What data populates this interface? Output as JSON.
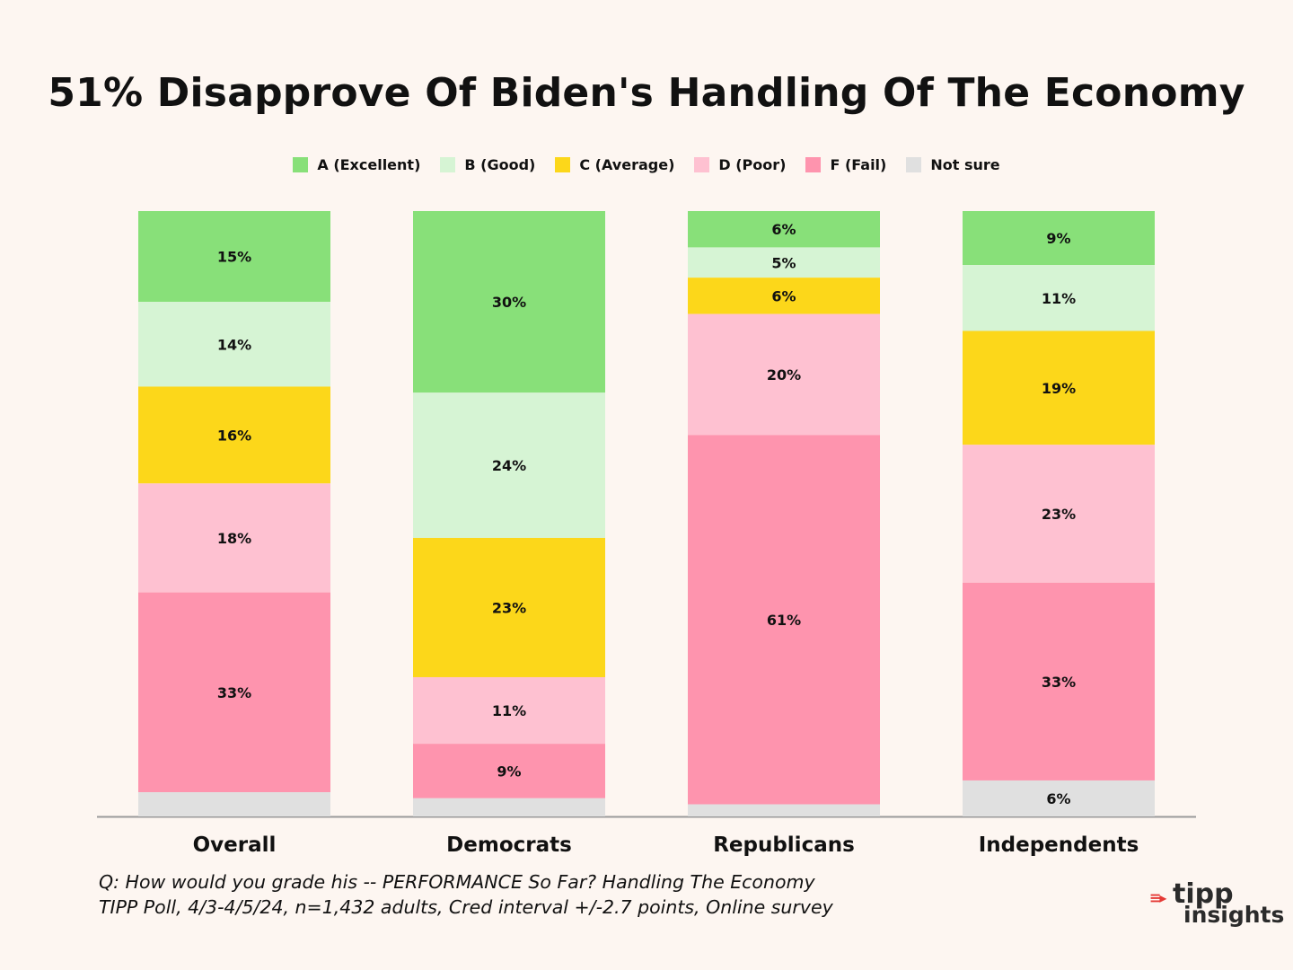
{
  "chart_data": {
    "type": "bar",
    "stacked": true,
    "title": "51% Disapprove Of Biden's Handling Of The Economy",
    "categories": [
      "Overall",
      "Democrats",
      "Republicans",
      "Independents"
    ],
    "series": [
      {
        "name": "A (Excellent)",
        "color": "#88e079",
        "values": [
          15,
          30,
          6,
          9
        ],
        "labels": [
          "15%",
          "30%",
          "6%",
          "9%"
        ]
      },
      {
        "name": "B (Good)",
        "color": "#d6f4d4",
        "values": [
          14,
          24,
          5,
          11
        ],
        "labels": [
          "14%",
          "24%",
          "5%",
          "11%"
        ]
      },
      {
        "name": "C (Average)",
        "color": "#fcd71a",
        "values": [
          16,
          23,
          6,
          19
        ],
        "labels": [
          "16%",
          "23%",
          "6%",
          "19%"
        ]
      },
      {
        "name": "D (Poor)",
        "color": "#fec1d1",
        "values": [
          18,
          11,
          20,
          23
        ],
        "labels": [
          "18%",
          "11%",
          "20%",
          "23%"
        ]
      },
      {
        "name": "F (Fail)",
        "color": "#fe94ae",
        "values": [
          33,
          9,
          61,
          33
        ],
        "labels": [
          "33%",
          "9%",
          "61%",
          "33%"
        ]
      },
      {
        "name": "Not sure",
        "color": "#e0e0e0",
        "values": [
          4,
          3,
          2,
          6
        ],
        "labels": [
          "",
          "",
          "",
          "6%"
        ]
      }
    ],
    "xlabel": "",
    "ylabel": "",
    "ylim": [
      0,
      100
    ],
    "legend": "top-center",
    "grid": false
  },
  "footnote": {
    "line1": "Q:  How would you grade his -- PERFORMANCE So Far? Handling The Economy",
    "line2": "TIPP Poll, 4/3-4/5/24, n=1,432 adults, Cred interval +/-2.7 points, Online survey"
  },
  "logo": {
    "arrow": "≡▸",
    "word1": "tipp",
    "word2": "insights"
  }
}
